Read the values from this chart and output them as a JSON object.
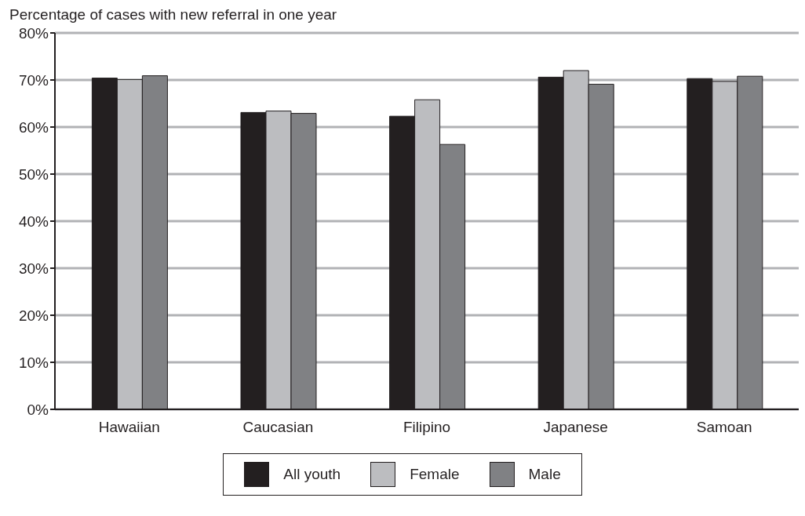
{
  "chart_data": {
    "type": "bar",
    "ylabel": "Percentage of cases with new referral in one year",
    "categories": [
      "Hawaiian",
      "Caucasian",
      "Filipino",
      "Japanese",
      "Samoan"
    ],
    "series": [
      {
        "name": "All youth",
        "color": "#231f20",
        "values": [
          70.4,
          63.1,
          62.3,
          70.6,
          70.3
        ]
      },
      {
        "name": "Female",
        "color": "#bcbdc0",
        "values": [
          70.1,
          63.4,
          65.8,
          72.0,
          69.7
        ]
      },
      {
        "name": "Male",
        "color": "#808184",
        "values": [
          70.9,
          62.9,
          56.3,
          69.1,
          70.8
        ]
      }
    ],
    "ylim": [
      0,
      80
    ],
    "yticks": [
      {
        "value": 0,
        "label": "0%"
      },
      {
        "value": 10,
        "label": "10%"
      },
      {
        "value": 20,
        "label": "20%"
      },
      {
        "value": 30,
        "label": "30%"
      },
      {
        "value": 40,
        "label": "40%"
      },
      {
        "value": 50,
        "label": "50%"
      },
      {
        "value": 60,
        "label": "60%"
      },
      {
        "value": 70,
        "label": "70%"
      },
      {
        "value": 80,
        "label": "80%"
      }
    ],
    "grid": "y",
    "legend": "bottom"
  }
}
